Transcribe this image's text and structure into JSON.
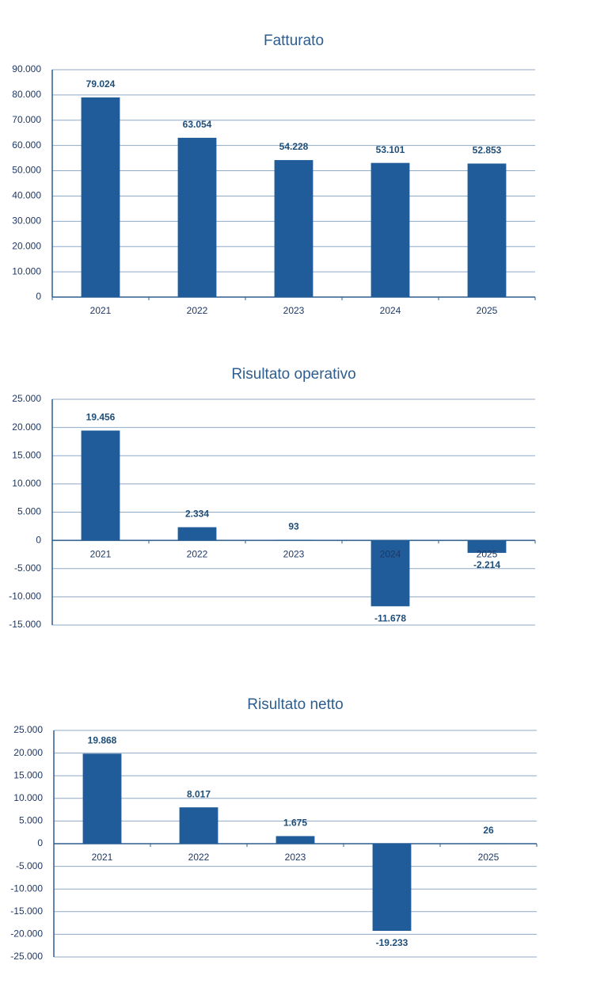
{
  "chart_data": [
    {
      "type": "bar",
      "title": "Fatturato",
      "categories": [
        "2021",
        "2022",
        "2023",
        "2024",
        "2025"
      ],
      "values": [
        79024,
        63054,
        54228,
        53101,
        52853
      ],
      "value_labels": [
        "79.024",
        "63.054",
        "54.228",
        "53.101",
        "52.853"
      ],
      "color": "#1f5c99",
      "grid": true,
      "ylim": [
        0,
        90000
      ],
      "yticks": [
        0,
        {
          "value": 10000,
          "label": "10.000"
        },
        {
          "value": 20000,
          "label": "20.000"
        },
        {
          "value": 30000,
          "label": "30.000"
        },
        {
          "value": 40000,
          "label": "40.000"
        },
        {
          "value": 50000,
          "label": "50.000"
        },
        {
          "value": 60000,
          "label": "60.000"
        },
        {
          "value": 70000,
          "label": "70.000"
        },
        {
          "value": 80000,
          "label": "80.000"
        },
        {
          "value": 90000,
          "label": "90.000"
        }
      ]
    },
    {
      "type": "bar",
      "title": "Risultato operativo",
      "categories": [
        "2021",
        "2022",
        "2023",
        "2024",
        "2025"
      ],
      "values": [
        19456,
        2334,
        93,
        -11678,
        -2214
      ],
      "value_labels": [
        "19.456",
        "2.334",
        "93",
        "-11.678",
        "-2.214"
      ],
      "color": "#1f5c99",
      "grid": true,
      "ylim": [
        -15000,
        25000
      ],
      "yticks": [
        {
          "value": -15000,
          "label": "-15.000"
        },
        {
          "value": -10000,
          "label": "-10.000"
        },
        {
          "value": -5000,
          "label": "-5.000"
        },
        0,
        {
          "value": 5000,
          "label": "5.000"
        },
        {
          "value": 10000,
          "label": "10.000"
        },
        {
          "value": 15000,
          "label": "15.000"
        },
        {
          "value": 20000,
          "label": "20.000"
        },
        {
          "value": 25000,
          "label": "25.000"
        }
      ]
    },
    {
      "type": "bar",
      "title": "Risultato netto",
      "categories": [
        "2021",
        "2022",
        "2023",
        null,
        "2025"
      ],
      "values": [
        19868,
        8017,
        1675,
        -19233,
        26
      ],
      "value_labels": [
        "19.868",
        "8.017",
        "1.675",
        "-19.233",
        "26"
      ],
      "color": "#1f5c99",
      "grid": true,
      "ylim": [
        -25000,
        25000
      ],
      "yticks": [
        {
          "value": -25000,
          "label": "-25.000"
        },
        {
          "value": -20000,
          "label": "-20.000"
        },
        {
          "value": -15000,
          "label": "-15.000"
        },
        {
          "value": -10000,
          "label": "-10.000"
        },
        {
          "value": -5000,
          "label": "-5.000"
        },
        0,
        {
          "value": 5000,
          "label": "5.000"
        },
        {
          "value": 10000,
          "label": "10.000"
        },
        {
          "value": 15000,
          "label": "15.000"
        },
        {
          "value": 20000,
          "label": "20.000"
        },
        {
          "value": 25000,
          "label": "25.000"
        }
      ]
    }
  ]
}
